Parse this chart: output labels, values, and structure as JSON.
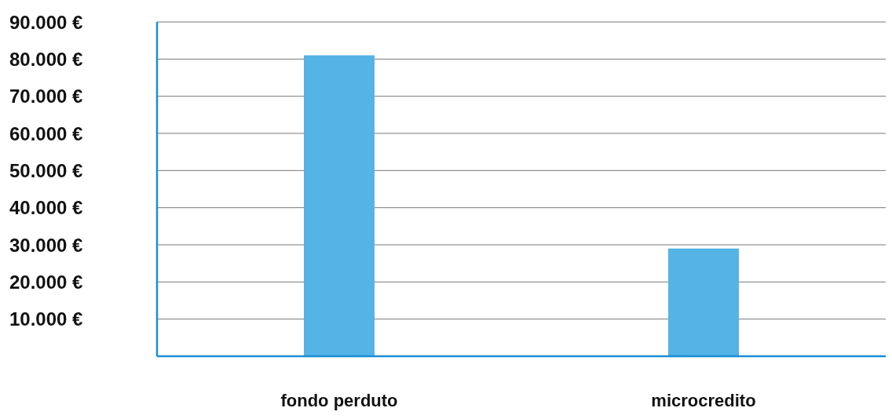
{
  "chart_data": {
    "type": "bar",
    "categories": [
      "fondo perduto",
      "microcredito"
    ],
    "values": [
      81000,
      29000
    ],
    "color": "#55b3e6",
    "ylim": [
      0,
      90000
    ],
    "yticks": [
      {
        "value": 10000,
        "label": "10.000 €"
      },
      {
        "value": 20000,
        "label": "20.000 €"
      },
      {
        "value": 30000,
        "label": "30.000 €"
      },
      {
        "value": 40000,
        "label": "40.000 €"
      },
      {
        "value": 50000,
        "label": "50.000 €"
      },
      {
        "value": 60000,
        "label": "60.000 €"
      },
      {
        "value": 70000,
        "label": "70.000 €"
      },
      {
        "value": 80000,
        "label": "80.000 €"
      },
      {
        "value": 90000,
        "label": "90.000 €"
      }
    ],
    "grid": "y"
  }
}
